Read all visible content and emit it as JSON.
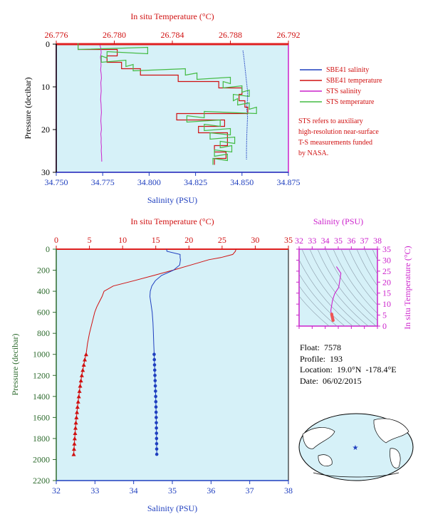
{
  "chart_data": [
    {
      "id": "top",
      "type": "line",
      "top_axis_label": "In situ Temperature (°C)",
      "top_ticks": [
        "26.776",
        "26.780",
        "26.784",
        "26.788",
        "26.792"
      ],
      "xlabel": "Salinity (PSU)",
      "x_ticks": [
        "34.750",
        "34.775",
        "34.800",
        "34.825",
        "34.850",
        "34.875"
      ],
      "ylabel": "Pressure (decibar)",
      "y_ticks": [
        "0",
        "10",
        "20",
        "30"
      ],
      "xlim": [
        34.75,
        34.875
      ],
      "temp_lim": [
        26.776,
        26.792
      ],
      "ylim": [
        0,
        30
      ],
      "legend": [
        {
          "label": "SBE41 salinity",
          "color": "#1f3fbf"
        },
        {
          "label": "SBE41 temperature",
          "color": "#d01010"
        },
        {
          "label": "STS salinity",
          "color": "#cc22cc"
        },
        {
          "label": "STS temperature",
          "color": "#44bb44"
        }
      ],
      "note": [
        "STS refers to auxiliary",
        "high-resolution near-surface",
        "T-S measurements funded",
        "by NASA."
      ],
      "series": [
        {
          "name": "SBE41 salinity",
          "color": "#1f3fbf",
          "pressure": [
            1.5,
            3,
            5,
            7,
            9,
            11,
            13,
            15,
            17,
            19,
            21,
            23,
            25,
            27
          ],
          "values": [
            34.8505,
            34.851,
            34.8515,
            34.852,
            34.8525,
            34.853,
            34.853,
            34.8525,
            34.853,
            34.8528,
            34.8526,
            34.8525,
            34.8524,
            34.8524
          ]
        },
        {
          "name": "SBE41 temperature",
          "color": "#d01010",
          "pressure": [
            0.5,
            2,
            3.5,
            5,
            6.5,
            8,
            9.5,
            11,
            12.5,
            14,
            15.5,
            17,
            18.5,
            20,
            21.5,
            23,
            24.5,
            26,
            27.5
          ],
          "values": [
            26.7775,
            26.7802,
            26.7795,
            26.7805,
            26.7818,
            26.7844,
            26.7872,
            26.7888,
            26.7886,
            26.789,
            26.7892,
            26.7843,
            26.7876,
            26.7858,
            26.7878,
            26.7878,
            26.7869,
            26.7877,
            26.7869
          ]
        },
        {
          "name": "STS salinity",
          "color": "#cc22cc",
          "pressure": [
            0.2,
            1,
            2,
            3,
            4,
            5,
            6,
            7,
            8,
            9,
            10,
            11,
            12,
            13,
            14,
            15,
            16,
            17,
            18,
            19,
            20,
            21,
            22,
            23,
            24,
            25,
            26,
            27.5
          ],
          "values": [
            34.7735,
            34.774,
            34.7742,
            34.7738,
            34.774,
            34.7741,
            34.7739,
            34.7742,
            34.7743,
            34.774,
            34.7741,
            34.7742,
            34.774,
            34.7739,
            34.7741,
            34.7742,
            34.7743,
            34.7741,
            34.774,
            34.7742,
            34.7743,
            34.774,
            34.7742,
            34.7741,
            34.7743,
            34.7742,
            34.7744,
            34.7745
          ]
        },
        {
          "name": "STS temperature",
          "color": "#44bb44",
          "pressure": [
            0.5,
            1.5,
            2.5,
            3.5,
            4.5,
            5.5,
            6.5,
            7.5,
            8.5,
            9.5,
            10.5,
            11.5,
            12.5,
            13.5,
            14.5,
            15.5,
            16.5,
            17.5,
            18.5,
            19.5,
            20.5,
            21.5,
            22.5,
            23.5,
            24.5,
            25.5,
            26.5,
            27.5
          ],
          "values": [
            26.7775,
            26.7823,
            26.7795,
            26.7791,
            26.7808,
            26.7813,
            26.7849,
            26.7857,
            26.788,
            26.7875,
            26.7888,
            26.7893,
            26.7882,
            26.7885,
            26.7893,
            26.7898,
            26.7862,
            26.785,
            26.7873,
            26.7862,
            26.788,
            26.7866,
            26.7883,
            26.7873,
            26.7881,
            26.7869,
            26.7878,
            26.7868
          ]
        }
      ]
    },
    {
      "id": "main",
      "type": "line",
      "top_axis_label": "In situ Temperature (°C)",
      "top_ticks": [
        "0",
        "5",
        "10",
        "15",
        "20",
        "25",
        "30",
        "35"
      ],
      "xlabel": "Salinity (PSU)",
      "x_ticks": [
        "32",
        "33",
        "34",
        "35",
        "36",
        "37",
        "38"
      ],
      "ylabel": "Pressure (decibar)",
      "y_ticks": [
        "0",
        "200",
        "400",
        "600",
        "800",
        "1000",
        "1200",
        "1400",
        "1600",
        "1800",
        "2000",
        "2200"
      ],
      "xlim": [
        32,
        38
      ],
      "temp_lim": [
        0,
        35
      ],
      "ylim": [
        0,
        2200
      ],
      "series": [
        {
          "name": "temperature",
          "color": "#d01010",
          "pressure": [
            0,
            20,
            50,
            80,
            100,
            150,
            200,
            250,
            300,
            350,
            400,
            450,
            500,
            550,
            600,
            700,
            800,
            900,
            1000,
            1050,
            1100,
            1150,
            1200,
            1250,
            1300,
            1350,
            1400,
            1450,
            1500,
            1550,
            1600,
            1650,
            1700,
            1750,
            1800,
            1850,
            1900,
            1950
          ],
          "values": [
            27.1,
            27,
            26.6,
            24.8,
            23,
            20.3,
            17.6,
            14.7,
            11.7,
            8.6,
            7.2,
            6.9,
            6.5,
            6.1,
            5.8,
            5.4,
            5.0,
            4.7,
            4.5,
            4.3,
            4.15,
            4.0,
            3.85,
            3.72,
            3.6,
            3.5,
            3.4,
            3.3,
            3.2,
            3.12,
            3.04,
            2.96,
            2.9,
            2.84,
            2.78,
            2.73,
            2.68,
            2.63
          ]
        },
        {
          "name": "salinity",
          "color": "#1f3fbf",
          "pressure": [
            0,
            20,
            50,
            80,
            100,
            150,
            200,
            250,
            300,
            350,
            400,
            450,
            500,
            600,
            700,
            800,
            900,
            1000,
            1050,
            1100,
            1150,
            1200,
            1250,
            1300,
            1350,
            1400,
            1450,
            1500,
            1550,
            1600,
            1650,
            1700,
            1750,
            1800,
            1850,
            1900,
            1950
          ],
          "values": [
            34.85,
            34.86,
            35.2,
            35.2,
            35.21,
            35.19,
            35.03,
            34.72,
            34.56,
            34.47,
            34.43,
            34.42,
            34.44,
            34.48,
            34.5,
            34.51,
            34.52,
            34.53,
            34.535,
            34.54,
            34.545,
            34.55,
            34.555,
            34.56,
            34.565,
            34.57,
            34.573,
            34.577,
            34.58,
            34.583,
            34.586,
            34.588,
            34.59,
            34.592,
            34.594,
            34.596,
            34.598
          ]
        }
      ],
      "marker_from_pressure": 1000
    },
    {
      "id": "ts",
      "type": "line",
      "top_axis_label": "Salinity (PSU)",
      "top_ticks": [
        "32",
        "33",
        "34",
        "35",
        "36",
        "37",
        "38"
      ],
      "ylabel": "In situ Temperature (°C)",
      "y_ticks": [
        "0",
        "5",
        "10",
        "15",
        "20",
        "25",
        "30",
        "35"
      ],
      "xlim": [
        32,
        38
      ],
      "ylim": [
        0,
        35
      ],
      "series": [
        {
          "name": "T-S",
          "color": "#cc22cc",
          "x": [
            34.86,
            35.2,
            35.03,
            34.72,
            34.56,
            34.47,
            34.43,
            34.44,
            34.48,
            34.5,
            34.52,
            34.55,
            34.58,
            34.6
          ],
          "y": [
            27.1,
            24,
            17.6,
            14.7,
            11.7,
            8.6,
            7.2,
            6.5,
            5.8,
            5.4,
            4.7,
            3.9,
            3.2,
            2.6
          ]
        }
      ]
    }
  ],
  "info": {
    "float": "Float:  7578",
    "profile": "Profile:  193",
    "location": "Location:  19.0°N  -178.4°E",
    "date": "Date:  06/02/2015"
  },
  "map": {
    "marker": "★"
  },
  "colors": {
    "plot_bg": "#d6f1f8",
    "temp": "#d01010",
    "sal": "#1f3fbf",
    "pressure": "#2e6b2e",
    "ts": "#cc22cc"
  }
}
